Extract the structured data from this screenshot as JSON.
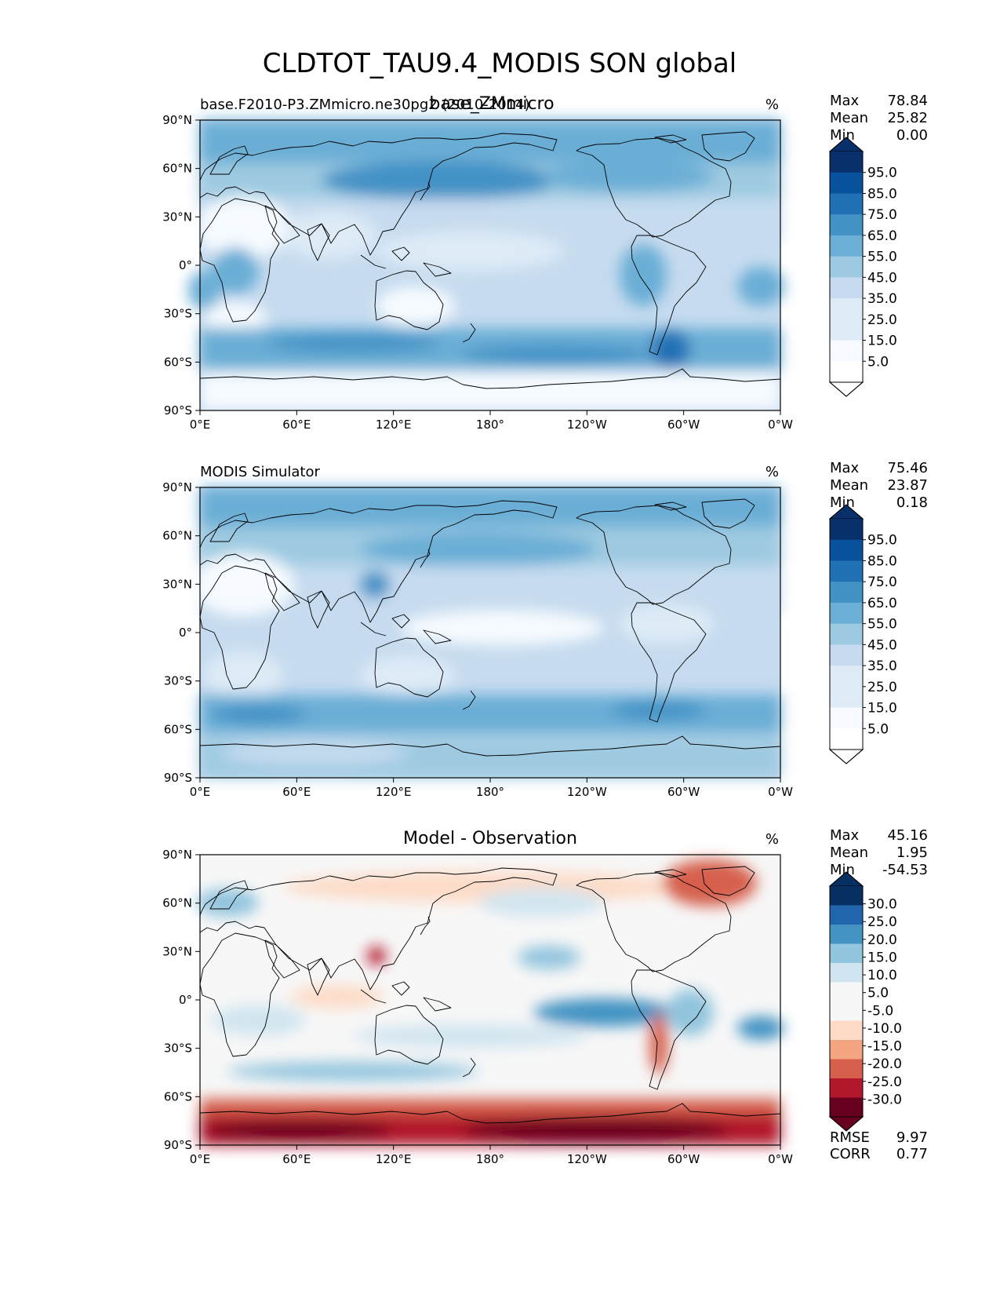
{
  "figure_title": "CLDTOT_TAU9.4_MODIS SON global",
  "colors": {
    "seq": [
      "#f7fbff",
      "#deebf7",
      "#c6dbef",
      "#9ecae1",
      "#6baed6",
      "#4292c6",
      "#2171b5",
      "#08519c",
      "#08306b"
    ],
    "div_pos": [
      "#d1e5f0",
      "#92c5de",
      "#4393c3",
      "#2166ac",
      "#053061"
    ],
    "div_neg": [
      "#fddbc7",
      "#f4a582",
      "#d6604d",
      "#b2182b",
      "#67001f"
    ],
    "div_center": "#f7f7f7",
    "coast": "#000000"
  },
  "axes": {
    "lat_ticks": [
      "90°N",
      "60°N",
      "30°N",
      "0°",
      "30°S",
      "60°S",
      "90°S"
    ],
    "lon_ticks": [
      "0°E",
      "60°E",
      "120°E",
      "180°",
      "120°W",
      "60°W",
      "0°W"
    ]
  },
  "chart_data": [
    {
      "type": "heatmap",
      "panel": "test",
      "title_left": "base.F2010-P3.ZMmicro.ne30pg2 (2010-2014)",
      "title_center": "base_ZMmicro",
      "units": "%",
      "stats": {
        "max": "78.84",
        "mean": "25.82",
        "min": "0.00"
      },
      "stat_labels": {
        "max": "Max",
        "mean": "Mean",
        "min": "Min"
      },
      "colorbar_levels": [
        "95.0",
        "85.0",
        "75.0",
        "65.0",
        "55.0",
        "45.0",
        "35.0",
        "25.0",
        "15.0",
        "5.0"
      ],
      "xlim": [
        0,
        360
      ],
      "ylim": [
        -90,
        90
      ]
    },
    {
      "type": "heatmap",
      "panel": "reference",
      "title_left": "MODIS Simulator",
      "units": "%",
      "stats": {
        "max": "75.46",
        "mean": "23.87",
        "min": "0.18"
      },
      "stat_labels": {
        "max": "Max",
        "mean": "Mean",
        "min": "Min"
      },
      "colorbar_levels": [
        "95.0",
        "85.0",
        "75.0",
        "65.0",
        "55.0",
        "45.0",
        "35.0",
        "25.0",
        "15.0",
        "5.0"
      ],
      "xlim": [
        0,
        360
      ],
      "ylim": [
        -90,
        90
      ]
    },
    {
      "type": "heatmap",
      "panel": "difference",
      "title_center": "Model - Observation",
      "units": "%",
      "stats": {
        "max": "45.16",
        "mean": "1.95",
        "min": "-54.53"
      },
      "stat_labels": {
        "max": "Max",
        "mean": "Mean",
        "min": "Min"
      },
      "colorbar_levels": [
        "30.0",
        "25.0",
        "20.0",
        "15.0",
        "10.0",
        "5.0",
        "-5.0",
        "-10.0",
        "-15.0",
        "-20.0",
        "-25.0",
        "-30.0"
      ],
      "metrics": {
        "rmse_label": "RMSE",
        "rmse": "9.97",
        "corr_label": "CORR",
        "corr": "0.77"
      },
      "xlim": [
        0,
        360
      ],
      "ylim": [
        -90,
        90
      ]
    }
  ]
}
